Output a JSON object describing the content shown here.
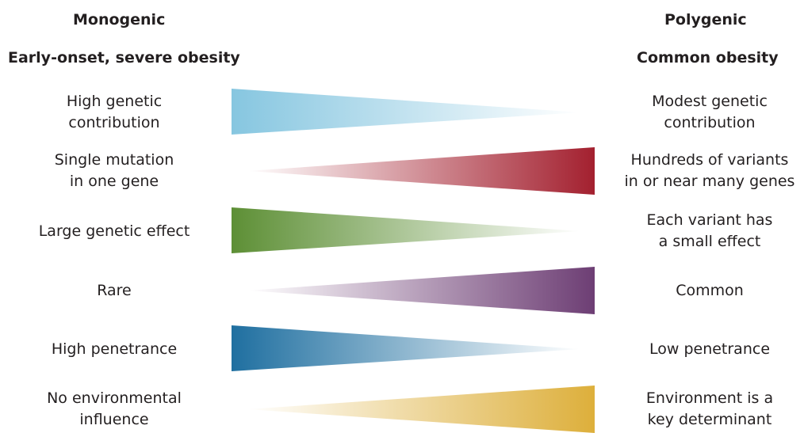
{
  "header": {
    "left_title": "Monogenic",
    "left_subtitle": "Early-onset, severe obesity",
    "right_title": "Polygenic",
    "right_subtitle": "Common obesity"
  },
  "rows": [
    {
      "left": "High genetic\ncontribution",
      "right": "Modest genetic\ncontribution",
      "color": "#86c6e0",
      "wide_side": "left"
    },
    {
      "left": "Single mutation\nin one gene",
      "right": "Hundreds of variants\nin or near many genes",
      "color": "#a3202f",
      "wide_side": "right"
    },
    {
      "left": "Large genetic effect",
      "right": "Each variant has\na small effect",
      "color": "#5d8f35",
      "wide_side": "left"
    },
    {
      "left": "Rare",
      "right": "Common",
      "color": "#6d3e74",
      "wide_side": "right"
    },
    {
      "left": "High penetrance",
      "right": "Low penetrance",
      "color": "#1f6fa0",
      "wide_side": "left"
    },
    {
      "left": "No environmental\ninfluence",
      "right": "Environment is a\nkey determinant",
      "color": "#ddaf3b",
      "wide_side": "right"
    }
  ]
}
